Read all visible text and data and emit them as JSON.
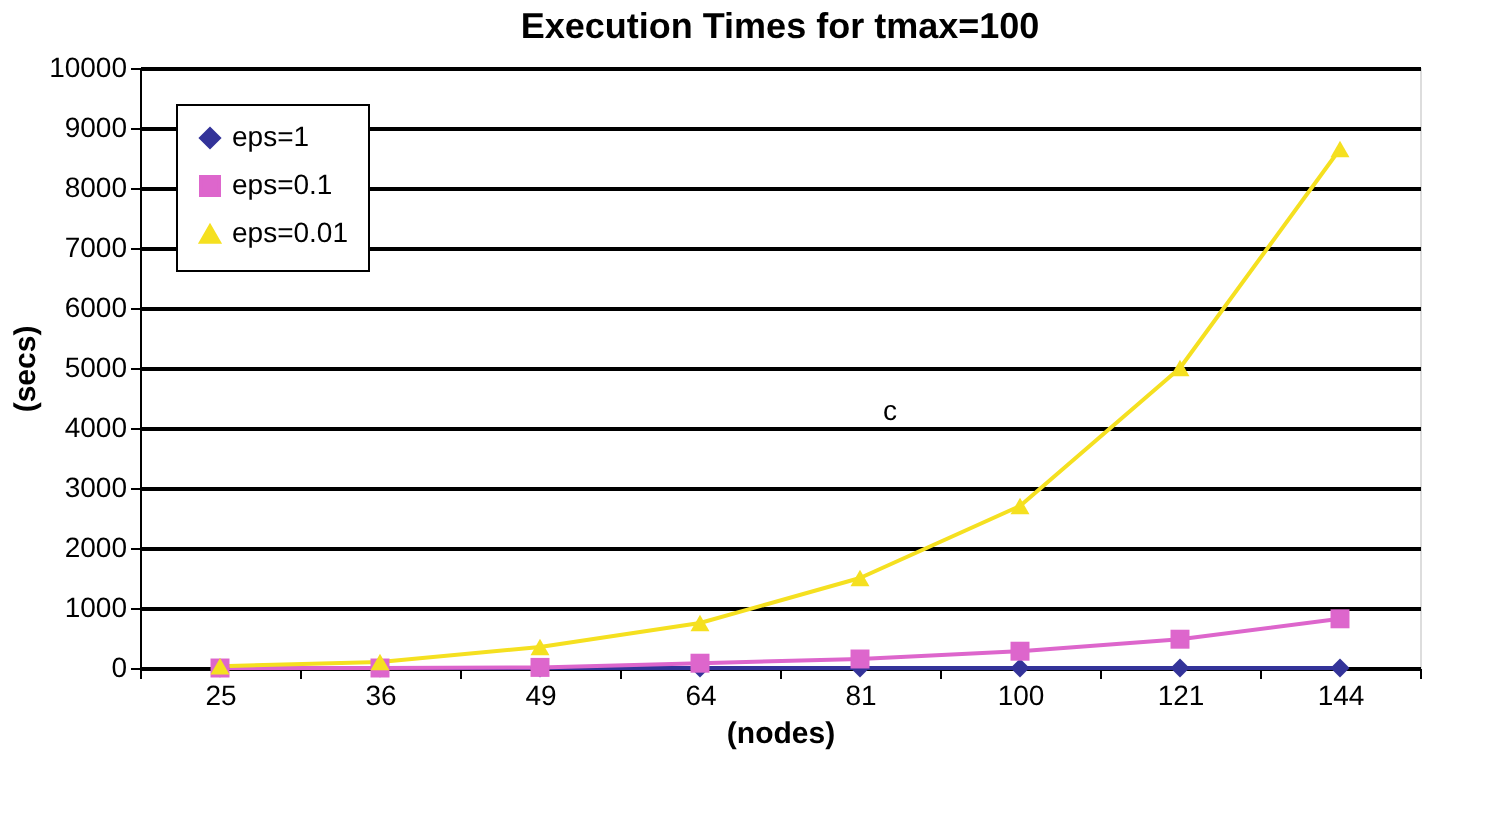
{
  "chart_data": {
    "type": "line",
    "title": "Execution Times for tmax=100",
    "xlabel": "(nodes)",
    "ylabel": "(secs)",
    "categories": [
      "25",
      "36",
      "49",
      "64",
      "81",
      "100",
      "121",
      "144"
    ],
    "series": [
      {
        "name": "eps=1",
        "color": "#333399",
        "marker": "diamond",
        "values": [
          0,
          0,
          0,
          0,
          0,
          0,
          0,
          0
        ]
      },
      {
        "name": "eps=0.1",
        "color": "#dd66cc",
        "marker": "square",
        "values": [
          0,
          0,
          10,
          80,
          150,
          280,
          480,
          820
        ]
      },
      {
        "name": "eps=0.01",
        "color": "#f5e020",
        "marker": "triangle",
        "values": [
          30,
          100,
          350,
          750,
          1500,
          2700,
          5000,
          8650
        ]
      }
    ],
    "ylim": [
      0,
      10000
    ],
    "yticks": [
      0,
      1000,
      2000,
      3000,
      4000,
      5000,
      6000,
      7000,
      8000,
      9000,
      10000
    ],
    "grid": "y",
    "legend": "top left",
    "line_style": "solid",
    "annotations": [
      "c"
    ]
  }
}
